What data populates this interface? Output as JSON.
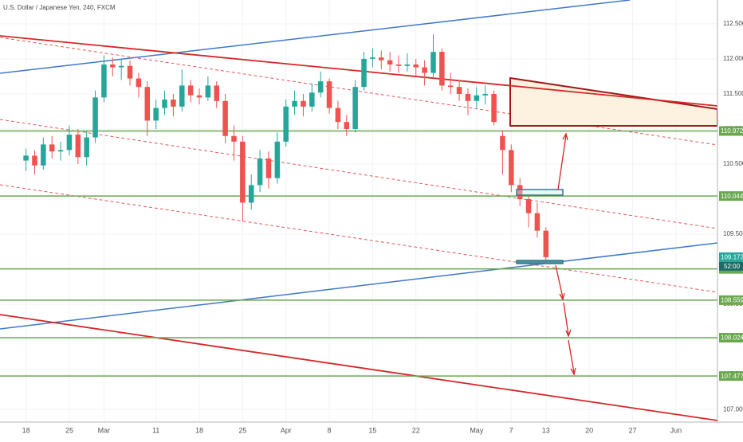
{
  "chart_data": {
    "type": "candlestick",
    "title": "U.S. Dollar / Japanese Yen, 240, FXCM",
    "x": [
      0,
      1,
      2,
      3,
      4,
      5,
      6,
      7,
      8,
      9,
      10,
      11,
      12,
      13,
      14,
      15,
      16,
      17,
      18,
      19,
      20,
      21,
      22,
      23,
      24,
      25,
      26,
      27,
      28,
      29,
      30,
      31,
      32,
      33,
      34,
      35,
      36,
      37,
      38,
      39,
      40,
      41,
      42,
      43,
      44,
      45,
      46,
      47,
      48,
      49,
      50,
      51,
      52,
      53,
      54,
      55,
      56,
      57,
      58,
      59,
      60
    ],
    "open": [
      110.55,
      110.62,
      110.48,
      110.78,
      110.68,
      110.7,
      110.92,
      110.6,
      110.88,
      111.45,
      111.92,
      111.88,
      111.9,
      111.72,
      111.6,
      111.12,
      111.3,
      111.42,
      111.32,
      111.62,
      111.48,
      111.45,
      111.62,
      111.4,
      110.9,
      110.82,
      109.95,
      110.2,
      110.58,
      110.3,
      110.82,
      111.32,
      111.4,
      111.32,
      111.52,
      111.68,
      111.3,
      111.1,
      111.0,
      111.6,
      112.0,
      112.02,
      111.98,
      111.92,
      111.9,
      111.92,
      111.88,
      111.8,
      112.1,
      111.62,
      111.6,
      111.5,
      111.4,
      111.48,
      111.5,
      110.9,
      110.7,
      110.2,
      110.0,
      109.8,
      109.55
    ],
    "high": [
      110.72,
      110.7,
      110.88,
      110.9,
      110.82,
      111.05,
      111.0,
      110.98,
      111.55,
      112.05,
      112.02,
      112.0,
      111.98,
      111.8,
      111.68,
      111.42,
      111.55,
      111.5,
      111.85,
      111.7,
      111.58,
      111.75,
      111.68,
      111.5,
      111.05,
      110.9,
      110.35,
      110.7,
      110.68,
      110.95,
      111.42,
      111.55,
      111.5,
      111.65,
      111.82,
      111.72,
      111.4,
      111.2,
      111.7,
      112.1,
      112.15,
      112.12,
      112.1,
      112.05,
      112.08,
      112.0,
      111.98,
      112.35,
      112.15,
      111.8,
      111.7,
      111.58,
      111.6,
      111.62,
      111.55,
      110.98,
      110.78,
      110.3,
      110.05,
      109.95,
      109.6
    ],
    "low": [
      110.4,
      110.35,
      110.42,
      110.58,
      110.55,
      110.62,
      110.5,
      110.48,
      110.8,
      111.38,
      111.75,
      111.7,
      111.62,
      111.45,
      110.9,
      111.0,
      111.2,
      111.18,
      111.25,
      111.38,
      111.35,
      111.4,
      111.3,
      110.8,
      110.55,
      109.68,
      109.85,
      110.1,
      110.15,
      110.22,
      110.75,
      111.2,
      111.18,
      111.25,
      111.45,
      111.22,
      111.0,
      110.9,
      110.95,
      111.55,
      111.88,
      111.85,
      111.82,
      111.8,
      111.82,
      111.75,
      111.62,
      111.72,
      111.55,
      111.5,
      111.4,
      111.2,
      111.3,
      111.35,
      111.05,
      110.35,
      110.1,
      109.9,
      109.6,
      109.45,
      109.12
    ],
    "close": [
      110.62,
      110.48,
      110.78,
      110.68,
      110.7,
      110.92,
      110.6,
      110.88,
      111.45,
      111.92,
      111.88,
      111.9,
      111.72,
      111.6,
      111.12,
      111.3,
      111.42,
      111.32,
      111.62,
      111.48,
      111.45,
      111.62,
      111.4,
      110.9,
      110.82,
      109.95,
      110.2,
      110.58,
      110.3,
      110.82,
      111.32,
      111.4,
      111.32,
      111.52,
      111.68,
      111.3,
      111.1,
      111.0,
      111.6,
      112.0,
      112.02,
      111.98,
      111.92,
      111.9,
      111.92,
      111.88,
      111.8,
      112.1,
      111.62,
      111.6,
      111.5,
      111.4,
      111.48,
      111.5,
      111.1,
      110.7,
      110.2,
      110.0,
      109.8,
      109.55,
      109.172
    ],
    "up_color": "#26a69a",
    "down_color": "#ef5350",
    "xlim": [
      -3,
      79.8
    ],
    "xticks": [
      {
        "value": 0,
        "label": "18"
      },
      {
        "value": 5,
        "label": "25"
      },
      {
        "value": 9,
        "label": "Mar"
      },
      {
        "value": 15,
        "label": "11"
      },
      {
        "value": 20,
        "label": "18"
      },
      {
        "value": 25,
        "label": "25"
      },
      {
        "value": 30,
        "label": "Apr"
      },
      {
        "value": 35,
        "label": "8"
      },
      {
        "value": 40,
        "label": "15"
      },
      {
        "value": 45,
        "label": "22"
      },
      {
        "value": 52,
        "label": "May"
      },
      {
        "value": 56,
        "label": "7"
      },
      {
        "value": 60,
        "label": "13"
      },
      {
        "value": 65,
        "label": "20"
      },
      {
        "value": 70,
        "label": "27"
      },
      {
        "value": 75,
        "label": "Jun"
      }
    ],
    "ylim": [
      106.82,
      112.84
    ],
    "yticks": [
      {
        "value": 107,
        "label": "107.000"
      },
      {
        "value": 107.5,
        "label": "107.500"
      },
      {
        "value": 108,
        "label": "108.000"
      },
      {
        "value": 108.5,
        "label": "108.500"
      },
      {
        "value": 109,
        "label": "109.000"
      },
      {
        "value": 109.5,
        "label": "109.500"
      },
      {
        "value": 110,
        "label": "110.000"
      },
      {
        "value": 110.5,
        "label": "110.500"
      },
      {
        "value": 111,
        "label": "111.000"
      },
      {
        "value": 111.5,
        "label": "111.500"
      },
      {
        "value": 112,
        "label": "112.000"
      },
      {
        "value": 112.5,
        "label": "112.500"
      }
    ],
    "levels": [
      {
        "value": 110.972,
        "label": "110.972"
      },
      {
        "value": 110.044,
        "label": "110.044"
      },
      {
        "value": 109.005,
        "label": "109.005"
      },
      {
        "value": 108.559,
        "label": "108.559"
      },
      {
        "value": 108.024,
        "label": "108.024"
      },
      {
        "value": 107.477,
        "label": "107.477"
      }
    ],
    "level_color": "#6aa84f",
    "last_price_label": "109.172",
    "countdown": "52:00"
  }
}
